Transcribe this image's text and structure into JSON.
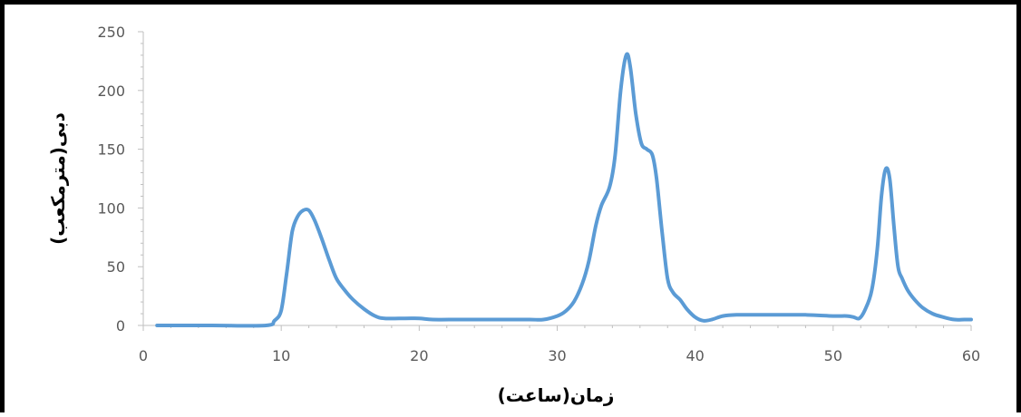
{
  "chart_data": {
    "type": "line",
    "title": "",
    "xlabel": "زمان(ساعت)",
    "ylabel": "دبی(مترمکعب)",
    "xlim": [
      0,
      60
    ],
    "ylim": [
      0,
      250
    ],
    "xticks": [
      0,
      10,
      20,
      30,
      40,
      50,
      60
    ],
    "yticks": [
      0,
      50,
      100,
      150,
      200,
      250
    ],
    "x_tick_labels": [
      "0",
      "10",
      "20",
      "30",
      "40",
      "50",
      "60"
    ],
    "y_tick_labels": [
      "0",
      "50",
      "100",
      "150",
      "200",
      "250"
    ],
    "grid": false,
    "legend": "none",
    "line_color": "#5b9bd5",
    "series": [
      {
        "x": [
          1,
          5,
          8.9,
          9.5,
          10,
          10.4,
          10.8,
          11.2,
          11.6,
          12,
          12.4,
          12.9,
          13.5,
          14,
          14.6,
          15.2,
          16,
          16.8,
          17.5,
          19,
          20,
          21,
          23,
          26,
          28,
          29,
          30,
          30.6,
          31.2,
          31.8,
          32.3,
          32.8,
          33.2,
          33.8,
          34.2,
          34.6,
          35,
          35.3,
          35.7,
          36.1,
          36.5,
          36.9,
          37.2,
          37.6,
          38,
          38.4,
          38.9,
          39.4,
          40,
          40.6,
          41.2,
          42,
          43,
          45,
          48,
          50,
          51,
          51.5,
          51.9,
          52.3,
          52.8,
          53.2,
          53.5,
          53.8,
          54.1,
          54.4,
          54.7,
          55,
          55.4,
          55.9,
          56.5,
          57.2,
          58,
          58.8,
          59.5,
          60
        ],
        "y": [
          0,
          0,
          0,
          4,
          13,
          45,
          80,
          93,
          98,
          98,
          90,
          75,
          55,
          40,
          30,
          22,
          14,
          8,
          6,
          6,
          6,
          5,
          5,
          5,
          5,
          5,
          8,
          12,
          20,
          35,
          55,
          85,
          102,
          118,
          145,
          200,
          230,
          220,
          180,
          155,
          150,
          145,
          125,
          80,
          40,
          28,
          22,
          14,
          7,
          4,
          5,
          8,
          9,
          9,
          9,
          8,
          8,
          7,
          6,
          13,
          30,
          65,
          110,
          133,
          125,
          85,
          50,
          40,
          30,
          22,
          15,
          10,
          7,
          5,
          5,
          5
        ]
      }
    ]
  }
}
